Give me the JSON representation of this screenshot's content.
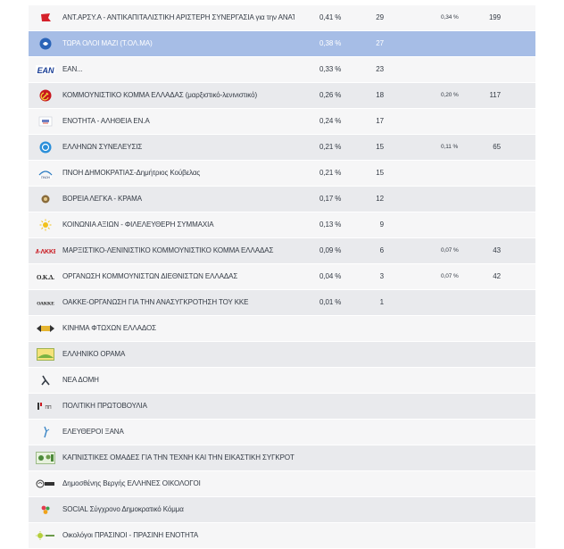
{
  "colors": {
    "selected_row": "#a6bde6",
    "row_light": "#f6f6f7",
    "row_dark": "#e9eaed"
  },
  "rows": [
    {
      "logo": "antarsya-flag-icon",
      "name": "ΑΝΤ.ΑΡΣΥ.Α - ΑΝΤΙΚΑΠΙΤΑΛΙΣΤΙΚΗ ΑΡΙΣΤΕΡΗ ΣΥΝΕΡΓΑΣΙΑ για την ΑΝΑΤΡΟ...",
      "pct": "0,41 %",
      "seats": "29",
      "pct2": "0,34 %",
      "seats2": "199"
    },
    {
      "logo": "tolma-logo-icon",
      "name": "ΤΩΡΑ ΟΛΟΙ ΜΑΖΙ (Τ.ΟΛ.ΜΑ)",
      "pct": "0,38 %",
      "seats": "27",
      "pct2": "",
      "seats2": ""
    },
    {
      "logo": "ean-logo-icon",
      "name": "ΕΑΝ...",
      "pct": "0,33 %",
      "seats": "23",
      "pct2": "",
      "seats2": ""
    },
    {
      "logo": "kke-hammer-sickle-icon",
      "name": "ΚΟΜΜΟΥΝΙΣΤΙΚΟ ΚΟΜΜΑ ΕΛΛΑΔΑΣ (μαρξιστικό-λενινιστικό)",
      "pct": "0,26 %",
      "seats": "18",
      "pct2": "0,20 %",
      "seats2": "117"
    },
    {
      "logo": "enotita-logo-icon",
      "name": "ΕΝΟΤΗΤΑ - ΑΛΗΘΕΙΑ ΕΝ.Α",
      "pct": "0,24 %",
      "seats": "17",
      "pct2": "",
      "seats2": ""
    },
    {
      "logo": "ellinon-synelefseis-logo-icon",
      "name": "ΕΛΛΗΝΩΝ ΣΥΝΕΛΕΥΣΙΣ",
      "pct": "0,21 %",
      "seats": "15",
      "pct2": "0,11 %",
      "seats2": "65"
    },
    {
      "logo": "pnoi-logo-icon",
      "name": "ΠΝΟΗ ΔΗΜΟΚΡΑΤΙΑΣ-Δημήτριος Κούβελας",
      "pct": "0,21 %",
      "seats": "15",
      "pct2": "",
      "seats2": ""
    },
    {
      "logo": "voreia-lenka-logo-icon",
      "name": "ΒΟΡΕΙΑ ΛΕΓΚΑ - ΚΡΑΜΑ",
      "pct": "0,17 %",
      "seats": "12",
      "pct2": "",
      "seats2": ""
    },
    {
      "logo": "koinonia-sun-logo-icon",
      "name": "ΚΟΙΝΩΝΙΑ ΑΞΙΩΝ - ΦΙΛΕΛΕΥΘΕΡΗ ΣΥΜΜΑΧΙΑ",
      "pct": "0,13 %",
      "seats": "9",
      "pct2": "",
      "seats2": ""
    },
    {
      "logo": "marxist-leninist-logo-icon",
      "name": "ΜΑΡΞΙΣΤΙΚΟ-ΛΕΝΙΝΙΣΤΙΚΟ ΚΟΜΜΟΥΝΙΣΤΙΚΟ ΚΟΜΜΑ ΕΛΛΑΔΑΣ",
      "pct": "0,09 %",
      "seats": "6",
      "pct2": "0,07 %",
      "seats2": "43"
    },
    {
      "logo": "oka-logo-icon",
      "name": "ΟΡΓΑΝΩΣΗ ΚΟΜΜΟΥΝΙΣΤΩΝ ΔΙΕΘΝΙΣΤΩΝ ΕΛΛΑΔΑΣ",
      "pct": "0,04 %",
      "seats": "3",
      "pct2": "0,07 %",
      "seats2": "42"
    },
    {
      "logo": "oakke-logo-icon",
      "name": "ΟΑΚΚΕ-ΟΡΓΑΝΩΣΗ ΓΙΑ ΤΗΝ ΑΝΑΣΥΓΚΡΟΤΗΣΗ ΤΟΥ ΚΚΕ",
      "pct": "0,01 %",
      "seats": "1",
      "pct2": "",
      "seats2": ""
    },
    {
      "logo": "kinima-ftochon-logo-icon",
      "name": "ΚΙΝΗΜΑ ΦΤΩΧΩΝ ΕΛΛΑΔΟΣ",
      "pct": "",
      "seats": "",
      "pct2": "",
      "seats2": ""
    },
    {
      "logo": "elliniko-orama-logo-icon",
      "name": "ΕΛΛΗΝΙΚΟ ΟΡΑΜΑ",
      "pct": "",
      "seats": "",
      "pct2": "",
      "seats2": ""
    },
    {
      "logo": "nea-domi-logo-icon",
      "name": "ΝΕΑ ΔΟΜΗ",
      "pct": "",
      "seats": "",
      "pct2": "",
      "seats2": ""
    },
    {
      "logo": "politiki-protovoulia-logo-icon",
      "name": "ΠΟΛΙΤΙΚΗ ΠΡΩΤΟΒΟΥΛΙΑ",
      "pct": "",
      "seats": "",
      "pct2": "",
      "seats2": ""
    },
    {
      "logo": "eleftheroi-xana-logo-icon",
      "name": "ΕΛΕΥΘΕΡΟΙ ΞΑΝΑ",
      "pct": "",
      "seats": "",
      "pct2": "",
      "seats2": ""
    },
    {
      "logo": "kapnistikes-omades-logo-icon",
      "name": "ΚΑΠΝΙΣΤΙΚΕΣ ΟΜΑΔΕΣ ΓΙΑ ΤΗΝ ΤΕΧΝΗ ΚΑΙ ΤΗΝ ΕΙΚΑΣΤΙΚΗ ΣΥΓΚΡΟΤΗΣΗ",
      "pct": "",
      "seats": "",
      "pct2": "",
      "seats2": ""
    },
    {
      "logo": "ellines-oikologoi-logo-icon",
      "name": "Δημοσθένης Βεργής ΕΛΛΗΝΕΣ ΟΙΚΟΛΟΓΟΙ",
      "pct": "",
      "seats": "",
      "pct2": "",
      "seats2": ""
    },
    {
      "logo": "social-logo-icon",
      "name": "SOCIAL Σύγχρονο Δημοκρατικό Κόμμα",
      "pct": "",
      "seats": "",
      "pct2": "",
      "seats2": ""
    },
    {
      "logo": "oikologoi-prasinoi-logo-icon",
      "name": "Οικολόγοι ΠΡΑΣΙΝΟΙ - ΠΡΑΣΙΝΗ ΕΝΟΤΗΤΑ",
      "pct": "",
      "seats": "",
      "pct2": "",
      "seats2": ""
    }
  ]
}
